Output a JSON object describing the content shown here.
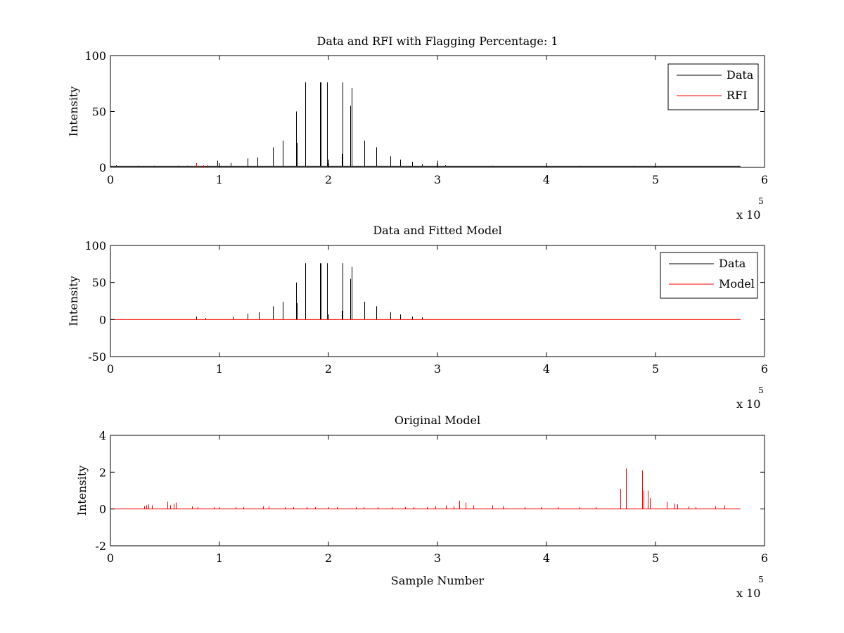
{
  "chart_data": [
    {
      "type": "line",
      "title": "Data and RFI with Flagging Percentage: 1",
      "xlabel": "",
      "ylabel": "Intensity",
      "xlim": [
        0,
        600000
      ],
      "ylim": [
        0,
        100
      ],
      "xticks": [
        0,
        1,
        2,
        3,
        4,
        5,
        6
      ],
      "yticks": [
        0,
        50,
        100
      ],
      "x_multiplier": "x 10",
      "x_exponent": "5",
      "grid": false,
      "legend_position": "top-right",
      "series": [
        {
          "name": "Data",
          "color": "#000000",
          "baseline": 1,
          "x_end": 578000,
          "spikes": [
            [
              5000,
              2
            ],
            [
              25000,
              1.5
            ],
            [
              40000,
              1.5
            ],
            [
              62000,
              1.5
            ],
            [
              70000,
              1.5
            ],
            [
              98000,
              6
            ],
            [
              110000,
              4
            ],
            [
              126000,
              8
            ],
            [
              135000,
              9
            ],
            [
              149000,
              18
            ],
            [
              158000,
              24
            ],
            [
              170000,
              50
            ],
            [
              171000,
              22
            ],
            [
              179000,
              76
            ],
            [
              192000,
              76
            ],
            [
              193000,
              76
            ],
            [
              199000,
              76
            ],
            [
              200000,
              7
            ],
            [
              212000,
              12
            ],
            [
              213000,
              76
            ],
            [
              220000,
              55
            ],
            [
              221000,
              71
            ],
            [
              233000,
              24
            ],
            [
              244000,
              18
            ],
            [
              257000,
              10
            ],
            [
              266000,
              7
            ],
            [
              277000,
              5
            ],
            [
              286000,
              3
            ],
            [
              300000,
              6
            ],
            [
              307000,
              2
            ],
            [
              350000,
              1.5
            ],
            [
              400000,
              1.5
            ],
            [
              430000,
              1.5
            ],
            [
              480000,
              1.5
            ]
          ]
        },
        {
          "name": "RFI",
          "color": "#ff0000",
          "baseline": 0,
          "x_end": 0,
          "spikes": [
            [
              79000,
              4
            ],
            [
              85000,
              2
            ],
            [
              89000,
              2
            ]
          ]
        }
      ]
    },
    {
      "type": "line",
      "title": "Data and Fitted Model",
      "xlabel": "",
      "ylabel": "Intensity",
      "xlim": [
        0,
        600000
      ],
      "ylim": [
        -50,
        100
      ],
      "xticks": [
        0,
        1,
        2,
        3,
        4,
        5,
        6
      ],
      "yticks": [
        -50,
        0,
        50,
        100
      ],
      "x_multiplier": "x 10",
      "x_exponent": "5",
      "grid": false,
      "legend_position": "top-right",
      "series": [
        {
          "name": "Data",
          "color": "#000000",
          "baseline": 0,
          "x_end": 0,
          "spikes": [
            [
              79000,
              4
            ],
            [
              87000,
              2
            ],
            [
              112000,
              4
            ],
            [
              126000,
              8
            ],
            [
              136000,
              10
            ],
            [
              149000,
              18
            ],
            [
              158000,
              24
            ],
            [
              170000,
              50
            ],
            [
              171000,
              22
            ],
            [
              179000,
              76
            ],
            [
              192000,
              76
            ],
            [
              193000,
              76
            ],
            [
              199000,
              76
            ],
            [
              200000,
              7
            ],
            [
              212000,
              12
            ],
            [
              213000,
              76
            ],
            [
              220000,
              55
            ],
            [
              221000,
              71
            ],
            [
              233000,
              24
            ],
            [
              244000,
              18
            ],
            [
              257000,
              10
            ],
            [
              266000,
              7
            ],
            [
              277000,
              4
            ],
            [
              286000,
              3
            ]
          ]
        },
        {
          "name": "Model",
          "color": "#ff0000",
          "baseline": 0,
          "x_end": 578000,
          "spikes": []
        }
      ]
    },
    {
      "type": "line",
      "title": "Original Model",
      "xlabel": "Sample Number",
      "ylabel": "Intensity",
      "xlim": [
        0,
        600000
      ],
      "ylim": [
        -2,
        4
      ],
      "xticks": [
        0,
        1,
        2,
        3,
        4,
        5,
        6
      ],
      "yticks": [
        -2,
        0,
        2,
        4
      ],
      "x_multiplier": "x 10",
      "x_exponent": "5",
      "grid": false,
      "legend_position": "none",
      "series": [
        {
          "name": "",
          "color": "#ff0000",
          "baseline": 0,
          "x_end": 578000,
          "spikes": [
            [
              31000,
              0.15
            ],
            [
              33000,
              0.2
            ],
            [
              35000,
              0.25
            ],
            [
              38000,
              0.2
            ],
            [
              52000,
              0.4
            ],
            [
              55000,
              0.2
            ],
            [
              58000,
              0.3
            ],
            [
              60000,
              0.35
            ],
            [
              75000,
              0.15
            ],
            [
              80000,
              0.1
            ],
            [
              95000,
              0.1
            ],
            [
              100000,
              0.1
            ],
            [
              115000,
              0.1
            ],
            [
              122000,
              0.1
            ],
            [
              140000,
              0.15
            ],
            [
              145000,
              0.15
            ],
            [
              160000,
              0.1
            ],
            [
              168000,
              0.1
            ],
            [
              180000,
              0.1
            ],
            [
              188000,
              0.1
            ],
            [
              200000,
              0.1
            ],
            [
              208000,
              0.1
            ],
            [
              225000,
              0.1
            ],
            [
              232000,
              0.1
            ],
            [
              245000,
              0.1
            ],
            [
              258000,
              0.1
            ],
            [
              270000,
              0.1
            ],
            [
              278000,
              0.1
            ],
            [
              290000,
              0.1
            ],
            [
              298000,
              0.15
            ],
            [
              308000,
              0.2
            ],
            [
              315000,
              0.15
            ],
            [
              320000,
              0.45
            ],
            [
              326000,
              0.35
            ],
            [
              333000,
              0.2
            ],
            [
              350000,
              0.2
            ],
            [
              360000,
              0.15
            ],
            [
              380000,
              0.1
            ],
            [
              395000,
              0.1
            ],
            [
              410000,
              0.1
            ],
            [
              430000,
              0.1
            ],
            [
              445000,
              0.1
            ],
            [
              468000,
              1.1
            ],
            [
              473000,
              2.2
            ],
            [
              488000,
              2.1
            ],
            [
              489000,
              1
            ],
            [
              493000,
              1
            ],
            [
              495000,
              0.6
            ],
            [
              510000,
              0.4
            ],
            [
              517000,
              0.3
            ],
            [
              520000,
              0.25
            ],
            [
              530000,
              0.15
            ],
            [
              537000,
              0.1
            ],
            [
              555000,
              0.15
            ],
            [
              563000,
              0.2
            ]
          ]
        }
      ]
    }
  ]
}
